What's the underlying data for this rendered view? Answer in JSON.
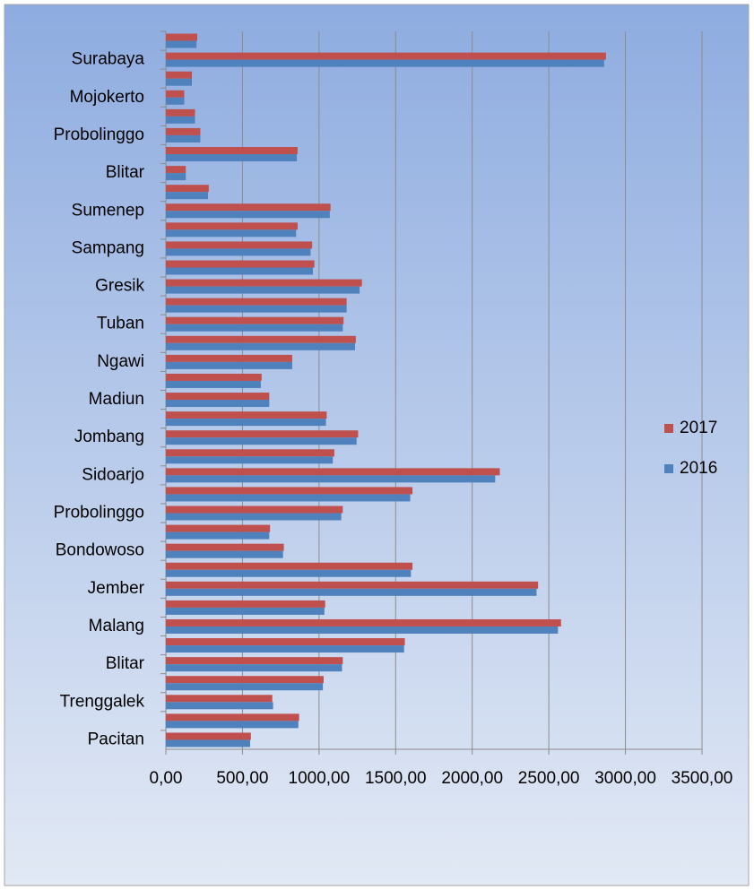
{
  "chart_data": {
    "type": "barh",
    "categories": [
      "Pacitan",
      null,
      "Trenggalek",
      null,
      "Blitar",
      null,
      "Malang",
      null,
      "Jember",
      null,
      "Bondowoso",
      null,
      "Probolinggo",
      null,
      "Sidoarjo",
      null,
      "Jombang",
      null,
      "Madiun",
      null,
      "Ngawi",
      null,
      "Tuban",
      null,
      "Gresik",
      null,
      "Sampang",
      null,
      "Sumenep",
      null,
      "Blitar",
      null,
      "Probolinggo",
      null,
      "Mojokerto",
      null,
      "Surabaya",
      null
    ],
    "series": [
      {
        "name": "2017",
        "color": "#c0504d",
        "values": [
          555,
          870,
          695,
          1030,
          1155,
          1560,
          2580,
          1040,
          2430,
          1610,
          770,
          680,
          1155,
          1610,
          2180,
          1100,
          1255,
          1050,
          675,
          625,
          825,
          1240,
          1160,
          1180,
          1280,
          970,
          955,
          860,
          1075,
          280,
          130,
          860,
          225,
          190,
          120,
          170,
          2873,
          205
        ]
      },
      {
        "name": "2016",
        "color": "#4f81bd",
        "values": [
          550,
          865,
          700,
          1025,
          1150,
          1555,
          2560,
          1035,
          2420,
          1600,
          765,
          675,
          1145,
          1595,
          2150,
          1090,
          1245,
          1045,
          675,
          620,
          825,
          1235,
          1155,
          1180,
          1265,
          960,
          945,
          850,
          1070,
          275,
          130,
          855,
          225,
          190,
          120,
          170,
          2861,
          200
        ]
      }
    ],
    "xlim": [
      0,
      3500
    ],
    "xticks": [
      {
        "value": 0,
        "label": "0,00"
      },
      {
        "value": 500,
        "label": "500,00"
      },
      {
        "value": 1000,
        "label": "1000,00"
      },
      {
        "value": 1500,
        "label": "1500,00"
      },
      {
        "value": 2000,
        "label": "2000,00"
      },
      {
        "value": 2500,
        "label": "2500,00"
      },
      {
        "value": 3000,
        "label": "3000,00"
      },
      {
        "value": 3500,
        "label": "3500,00"
      }
    ],
    "grid": true,
    "legend": "right"
  }
}
